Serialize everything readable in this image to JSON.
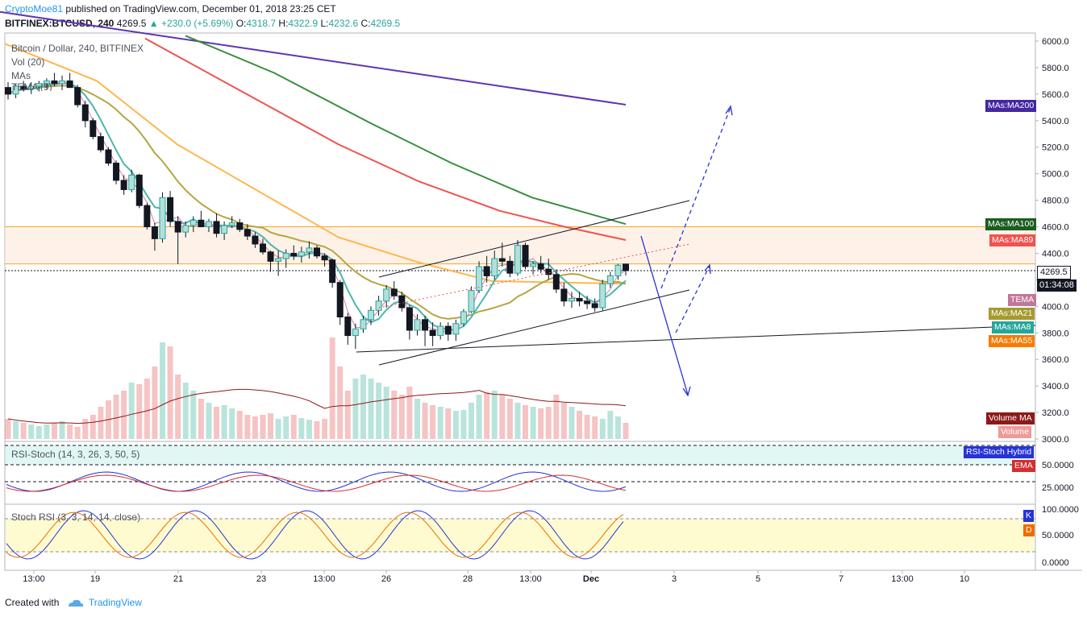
{
  "header": {
    "user": "CryptoMoe81",
    "published": "published on TradingView.com, December 01, 2018 23:25 CET",
    "symbol": "BITFINEX:BTCUSD, 240",
    "price": "4269.5",
    "change": "▲ +230.0 (+5.69%)",
    "o_label": "O:",
    "o": "4318.7",
    "h_label": "H:",
    "h": "4322.9",
    "l_label": "L:",
    "l": "4232.6",
    "c_label": "C:",
    "c": "4269.5"
  },
  "legend": {
    "title": "Bitcoin / Dollar, 240, BITFINEX",
    "vol": "Vol (20)",
    "mas": "MAs",
    "tema": "TEMA (9)",
    "rsi_stoch": "RSI-Stoch (14, 3, 26, 3, 50, 5)",
    "stoch_rsi": "Stoch RSI (3, 3, 14, 14, close)"
  },
  "tags": {
    "ma200": "MAs:MA200",
    "ma100": "MAs:MA100",
    "ma89": "MAs:MA89",
    "last_price": "4269.5",
    "countdown": "01:34:08",
    "tema": "TEMA",
    "ma21": "MAs:MA21",
    "ma8": "MAs:MA8",
    "ma55": "MAs:MA55",
    "volume_ma": "Volume MA",
    "volume": "Volume",
    "rsi_hybrid": "RSI-Stoch Hybrid",
    "ema": "EMA",
    "k": "K",
    "d": "D"
  },
  "colors": {
    "up": "#26a69a",
    "down": "#000000",
    "up_fill": "#b2dfdb",
    "ma8": "#4db6ac",
    "ma21": "#b5a642",
    "ma55": "#ffb74d",
    "ma89": "#ef5350",
    "ma100": "#388e3c",
    "ma200": "#5e35b1",
    "tema": "#d47fa6",
    "projection": "#2633d6"
  },
  "footer": {
    "created": "Created with",
    "brand": "TradingView"
  },
  "chart_data": {
    "type": "candlestick",
    "ylim": [
      2950,
      6100
    ],
    "price_ticks": [
      "6000.0",
      "5800.0",
      "5600.0",
      "5400.0",
      "5200.0",
      "5000.0",
      "4800.0",
      "4600.0",
      "4400.0",
      "4200.0",
      "4000.0",
      "3800.0",
      "3600.0",
      "3400.0",
      "3200.0",
      "3000.0"
    ],
    "x_ticks": [
      "13:00",
      "19",
      "21",
      "23",
      "13:00",
      "26",
      "28",
      "13:00",
      "Dec",
      "3",
      "5",
      "7",
      "13:00",
      "10"
    ],
    "last_price": 4269.5,
    "highlight_zone": [
      4320,
      4600
    ],
    "ohlc": [
      [
        5650,
        5690,
        5560,
        5600
      ],
      [
        5600,
        5680,
        5570,
        5660
      ],
      [
        5660,
        5700,
        5620,
        5640
      ],
      [
        5640,
        5690,
        5600,
        5660
      ],
      [
        5660,
        5700,
        5620,
        5680
      ],
      [
        5680,
        5720,
        5640,
        5700
      ],
      [
        5700,
        5760,
        5660,
        5680
      ],
      [
        5680,
        5740,
        5630,
        5700
      ],
      [
        5700,
        5760,
        5660,
        5650
      ],
      [
        5650,
        5670,
        5500,
        5520
      ],
      [
        5520,
        5550,
        5350,
        5400
      ],
      [
        5400,
        5420,
        5260,
        5280
      ],
      [
        5280,
        5310,
        5160,
        5180
      ],
      [
        5180,
        5200,
        5060,
        5080
      ],
      [
        5080,
        5100,
        4920,
        4950
      ],
      [
        4950,
        4990,
        4840,
        4880
      ],
      [
        4880,
        5030,
        4860,
        4990
      ],
      [
        4990,
        5000,
        4740,
        4760
      ],
      [
        4760,
        4780,
        4580,
        4600
      ],
      [
        4600,
        4630,
        4420,
        4510
      ],
      [
        4510,
        4860,
        4480,
        4820
      ],
      [
        4820,
        4870,
        4600,
        4640
      ],
      [
        4640,
        4680,
        4320,
        4560
      ],
      [
        4560,
        4640,
        4520,
        4610
      ],
      [
        4610,
        4680,
        4560,
        4650
      ],
      [
        4650,
        4720,
        4600,
        4600
      ],
      [
        4600,
        4660,
        4560,
        4640
      ],
      [
        4640,
        4700,
        4520,
        4550
      ],
      [
        4550,
        4640,
        4500,
        4610
      ],
      [
        4610,
        4680,
        4590,
        4630
      ],
      [
        4630,
        4660,
        4560,
        4580
      ],
      [
        4580,
        4620,
        4500,
        4530
      ],
      [
        4530,
        4560,
        4440,
        4470
      ],
      [
        4470,
        4510,
        4390,
        4410
      ],
      [
        4410,
        4420,
        4260,
        4340
      ],
      [
        4340,
        4420,
        4230,
        4360
      ],
      [
        4360,
        4430,
        4290,
        4400
      ],
      [
        4400,
        4460,
        4350,
        4380
      ],
      [
        4380,
        4450,
        4330,
        4410
      ],
      [
        4410,
        4490,
        4360,
        4440
      ],
      [
        4440,
        4460,
        4360,
        4380
      ],
      [
        4380,
        4400,
        4300,
        4350
      ],
      [
        4350,
        4360,
        4140,
        4180
      ],
      [
        4180,
        4200,
        3860,
        3920
      ],
      [
        3920,
        3950,
        3710,
        3780
      ],
      [
        3780,
        3870,
        3680,
        3830
      ],
      [
        3830,
        3930,
        3800,
        3900
      ],
      [
        3900,
        4000,
        3860,
        3970
      ],
      [
        3970,
        4080,
        3930,
        4040
      ],
      [
        4040,
        4160,
        3990,
        4130
      ],
      [
        4130,
        4190,
        4050,
        4080
      ],
      [
        4080,
        4110,
        3960,
        3990
      ],
      [
        3990,
        4010,
        3750,
        3820
      ],
      [
        3820,
        3940,
        3780,
        3900
      ],
      [
        3900,
        3930,
        3700,
        3820
      ],
      [
        3820,
        3880,
        3700,
        3780
      ],
      [
        3780,
        3880,
        3750,
        3850
      ],
      [
        3850,
        3880,
        3740,
        3790
      ],
      [
        3790,
        3900,
        3740,
        3870
      ],
      [
        3870,
        3980,
        3850,
        3960
      ],
      [
        3960,
        4150,
        3950,
        4120
      ],
      [
        4120,
        4340,
        4100,
        4300
      ],
      [
        4300,
        4380,
        4180,
        4230
      ],
      [
        4230,
        4420,
        4200,
        4360
      ],
      [
        4360,
        4480,
        4300,
        4340
      ],
      [
        4340,
        4380,
        4220,
        4250
      ],
      [
        4250,
        4500,
        4230,
        4460
      ],
      [
        4460,
        4480,
        4280,
        4300
      ],
      [
        4300,
        4340,
        4240,
        4320
      ],
      [
        4320,
        4380,
        4250,
        4280
      ],
      [
        4280,
        4360,
        4200,
        4240
      ],
      [
        4240,
        4280,
        4100,
        4130
      ],
      [
        4130,
        4180,
        4000,
        4040
      ],
      [
        4040,
        4110,
        3990,
        4060
      ],
      [
        4060,
        4110,
        4000,
        4040
      ],
      [
        4040,
        4080,
        3980,
        4020
      ],
      [
        4020,
        4060,
        3960,
        3990
      ],
      [
        3990,
        4200,
        3970,
        4170
      ],
      [
        4170,
        4260,
        4140,
        4230
      ],
      [
        4230,
        4320,
        4200,
        4310
      ],
      [
        4318.7,
        4322.9,
        4232.6,
        4269.5
      ]
    ],
    "volume": [
      [
        1
      ],
      [
        1
      ],
      [
        1
      ],
      [
        1
      ],
      [
        1
      ],
      [
        1
      ],
      [
        1
      ],
      [
        1
      ],
      [
        1
      ],
      [
        1
      ],
      [
        1
      ],
      [
        1
      ],
      [
        1
      ],
      [
        1
      ],
      [
        1
      ],
      [
        1
      ],
      [
        1
      ],
      [
        1
      ],
      [
        1
      ],
      [
        1
      ],
      [
        1
      ],
      [
        1
      ],
      [
        1
      ],
      [
        1
      ],
      [
        1
      ],
      [
        1
      ],
      [
        1
      ],
      [
        1
      ],
      [
        1
      ],
      [
        1
      ],
      [
        1
      ],
      [
        1
      ],
      [
        1
      ],
      [
        1
      ],
      [
        1
      ],
      [
        1
      ],
      [
        1
      ],
      [
        1
      ],
      [
        1
      ],
      [
        1
      ],
      [
        1
      ],
      [
        1
      ],
      [
        1
      ],
      [
        1
      ],
      [
        1
      ],
      [
        1
      ],
      [
        1
      ],
      [
        1
      ],
      [
        1
      ],
      [
        1
      ],
      [
        1
      ],
      [
        1
      ],
      [
        1
      ],
      [
        1
      ],
      [
        1
      ],
      [
        1
      ],
      [
        1
      ],
      [
        1
      ],
      [
        1
      ],
      [
        1
      ],
      [
        1
      ],
      [
        1
      ],
      [
        1
      ],
      [
        1
      ],
      [
        1
      ],
      [
        1
      ],
      [
        1
      ],
      [
        1
      ],
      [
        1
      ],
      [
        1
      ],
      [
        1
      ],
      [
        1
      ],
      [
        1
      ],
      [
        1
      ],
      [
        1
      ],
      [
        1
      ],
      [
        1
      ],
      [
        1
      ],
      [
        1
      ],
      [
        1
      ],
      [
        1
      ]
    ],
    "ma200": [
      [
        0,
        6220
      ],
      [
        776,
        5520
      ]
    ],
    "rsi_stoch_ticks": [
      "50.0000",
      "25.0000"
    ],
    "stoch_rsi_ticks": [
      "100.0000",
      "50.0000",
      "0.0000"
    ]
  }
}
